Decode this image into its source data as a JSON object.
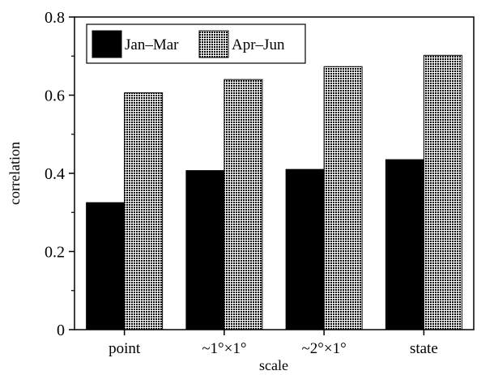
{
  "chart_data": {
    "type": "bar",
    "categories": [
      "point",
      "~1°×1°",
      "~2°×1°",
      "state"
    ],
    "series": [
      {
        "name": "Jan–Mar",
        "values": [
          0.325,
          0.407,
          0.41,
          0.435
        ],
        "color": "#000000",
        "fill": "solid"
      },
      {
        "name": "Apr–Jun",
        "values": [
          0.606,
          0.64,
          0.673,
          0.702
        ],
        "color": "#000000",
        "fill": "dotted"
      }
    ],
    "title": "",
    "xlabel": "scale",
    "ylabel": "correlation",
    "ylim": [
      0,
      0.8
    ],
    "yticks": [
      "0",
      "0.2",
      "0.4",
      "0.6",
      "0.8"
    ],
    "ytick_values": [
      0,
      0.2,
      0.4,
      0.6,
      0.8
    ],
    "grid": false,
    "legend": "top-left"
  }
}
